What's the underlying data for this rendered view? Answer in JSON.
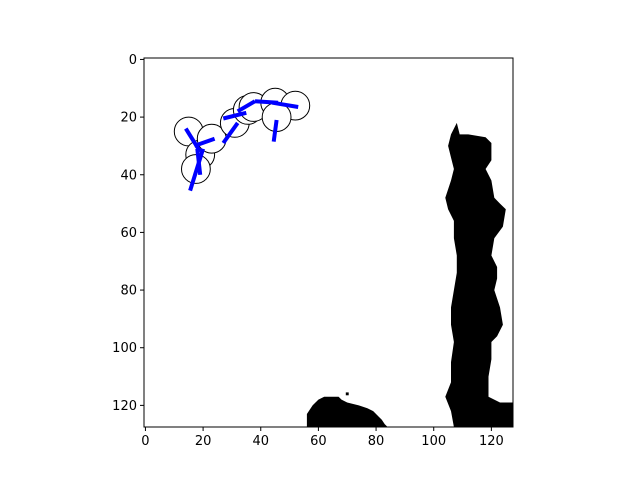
{
  "chart_data": {
    "type": "scatter",
    "title": "",
    "xlabel": "",
    "ylabel": "",
    "xlim": [
      -0.5,
      127.5
    ],
    "ylim": [
      127.5,
      -0.5
    ],
    "x_ticks": [
      0,
      20,
      40,
      60,
      80,
      100,
      120
    ],
    "y_ticks": [
      0,
      20,
      40,
      60,
      80,
      100,
      120
    ],
    "y_axis_inverted": true,
    "grid": false,
    "background_image": "binary occupancy map (black obstacles on white)",
    "obstacles": [
      {
        "name": "right-column",
        "outline": [
          [
            108,
            22
          ],
          [
            109,
            26
          ],
          [
            112,
            26
          ],
          [
            118,
            27
          ],
          [
            120,
            29
          ],
          [
            120,
            35
          ],
          [
            118,
            38
          ],
          [
            120,
            42
          ],
          [
            121,
            48
          ],
          [
            123,
            50
          ],
          [
            125,
            52
          ],
          [
            124,
            58
          ],
          [
            121,
            62
          ],
          [
            120,
            68
          ],
          [
            122,
            72
          ],
          [
            122,
            76
          ],
          [
            121,
            80
          ],
          [
            123,
            86
          ],
          [
            124,
            92
          ],
          [
            122,
            96
          ],
          [
            120,
            98
          ],
          [
            120,
            104
          ],
          [
            119,
            110
          ],
          [
            119,
            117
          ],
          [
            123,
            119
          ],
          [
            127.5,
            119
          ],
          [
            127.5,
            127.5
          ],
          [
            107,
            127.5
          ],
          [
            106,
            122
          ],
          [
            104,
            117
          ],
          [
            106,
            112
          ],
          [
            106,
            105
          ],
          [
            107,
            98
          ],
          [
            106,
            92
          ],
          [
            106,
            86
          ],
          [
            107,
            80
          ],
          [
            108,
            74
          ],
          [
            108,
            68
          ],
          [
            107,
            62
          ],
          [
            107,
            56
          ],
          [
            105,
            52
          ],
          [
            104,
            48
          ],
          [
            106,
            42
          ],
          [
            107,
            38
          ],
          [
            106,
            34
          ],
          [
            105,
            30
          ],
          [
            106,
            26
          ]
        ]
      },
      {
        "name": "bottom-mound",
        "outline": [
          [
            56,
            127.5
          ],
          [
            56,
            123
          ],
          [
            58,
            120
          ],
          [
            60,
            118
          ],
          [
            62,
            117
          ],
          [
            67,
            117
          ],
          [
            68,
            118
          ],
          [
            70,
            119
          ],
          [
            74,
            120
          ],
          [
            77,
            121
          ],
          [
            79,
            122
          ],
          [
            81,
            124
          ],
          [
            82,
            125
          ],
          [
            83,
            126.5
          ],
          [
            84,
            127.5
          ]
        ]
      },
      {
        "name": "speck",
        "outline": [
          [
            69.5,
            115.5
          ],
          [
            70.5,
            115.5
          ],
          [
            70.5,
            116.5
          ],
          [
            69.5,
            116.5
          ]
        ]
      }
    ],
    "circles": [
      {
        "x": 15,
        "y": 25,
        "r": 5
      },
      {
        "x": 19,
        "y": 33,
        "r": 5
      },
      {
        "x": 23,
        "y": 27.5,
        "r": 5
      },
      {
        "x": 17.5,
        "y": 38,
        "r": 5
      },
      {
        "x": 31,
        "y": 22,
        "r": 5
      },
      {
        "x": 35.5,
        "y": 17.5,
        "r": 5
      },
      {
        "x": 37.5,
        "y": 16.5,
        "r": 5
      },
      {
        "x": 45,
        "y": 15,
        "r": 5
      },
      {
        "x": 52,
        "y": 16,
        "r": 5
      },
      {
        "x": 45.5,
        "y": 20,
        "r": 5
      }
    ],
    "segments": [
      {
        "x1": 14,
        "y1": 24,
        "x2": 19,
        "y2": 32
      },
      {
        "x1": 17,
        "y1": 30,
        "x2": 24,
        "y2": 27.5
      },
      {
        "x1": 18,
        "y1": 31,
        "x2": 19,
        "y2": 40
      },
      {
        "x1": 15.5,
        "y1": 45.5,
        "x2": 20,
        "y2": 31
      },
      {
        "x1": 27,
        "y1": 29,
        "x2": 32,
        "y2": 22
      },
      {
        "x1": 27,
        "y1": 20.5,
        "x2": 35,
        "y2": 18.5
      },
      {
        "x1": 32,
        "y1": 18,
        "x2": 38,
        "y2": 14.5
      },
      {
        "x1": 38,
        "y1": 14.5,
        "x2": 46,
        "y2": 15
      },
      {
        "x1": 44,
        "y1": 15,
        "x2": 53,
        "y2": 16.5
      },
      {
        "x1": 45.5,
        "y1": 21,
        "x2": 44.5,
        "y2": 28.5
      }
    ],
    "colors": {
      "segment": "#0000ff",
      "circle_fill": "#ffffff",
      "circle_edge": "#000000",
      "obstacle": "#000000",
      "background": "#ffffff"
    }
  }
}
